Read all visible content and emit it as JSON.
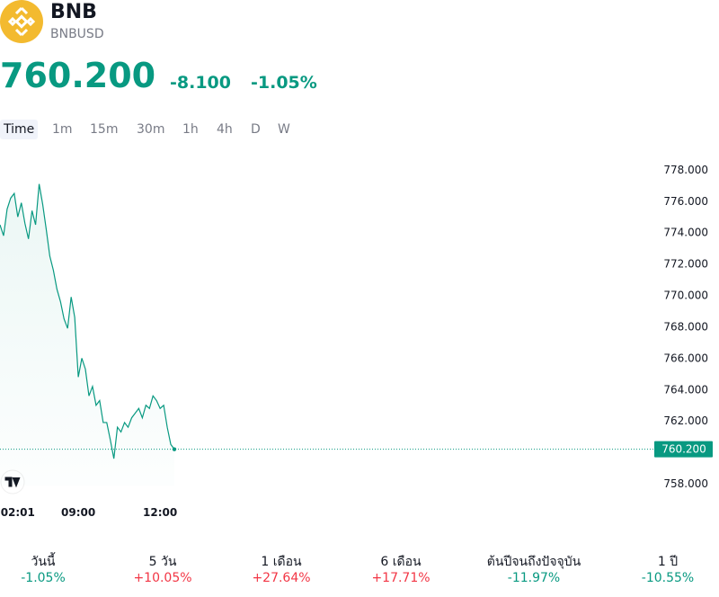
{
  "header": {
    "symbol": "BNB",
    "ticker": "BNBUSD",
    "price": "760.200",
    "change": "-8.100",
    "change_percent": "-1.05%"
  },
  "intervals": [
    "Time",
    "1m",
    "15m",
    "30m",
    "1h",
    "4h",
    "D",
    "W"
  ],
  "chart_data": {
    "type": "line",
    "color": "#089981",
    "categories": [
      null,
      null,
      null,
      null,
      null,
      "02:01",
      null,
      null,
      null,
      null,
      null,
      null,
      null,
      null,
      null,
      null,
      null,
      null,
      null,
      null,
      null,
      null,
      "09:00",
      null,
      null,
      null,
      null,
      null,
      null,
      null,
      null,
      null,
      null,
      null,
      null,
      null,
      null,
      null,
      null,
      null,
      null,
      null,
      null,
      null,
      null,
      "12:00",
      null,
      null,
      null,
      null
    ],
    "values": [
      774.5,
      773.8,
      775.5,
      776.2,
      776.5,
      775.0,
      775.9,
      774.6,
      773.6,
      775.4,
      774.5,
      777.1,
      775.8,
      774.2,
      772.5,
      771.6,
      770.4,
      769.6,
      768.5,
      767.9,
      769.9,
      768.6,
      764.8,
      766.0,
      765.3,
      763.6,
      764.2,
      763.0,
      763.3,
      761.9,
      761.9,
      760.8,
      759.6,
      761.6,
      761.3,
      761.9,
      761.6,
      762.2,
      762.5,
      762.8,
      762.2,
      763.0,
      762.8,
      763.6,
      763.3,
      762.8,
      763.0,
      761.6,
      760.5,
      760.2
    ],
    "ylim": [
      757,
      780
    ],
    "yticks": [
      {
        "value": 758,
        "label": "758.000"
      },
      {
        "value": 760,
        "label": "760.000"
      },
      {
        "value": 762,
        "label": "762.000"
      },
      {
        "value": 764,
        "label": "764.000"
      },
      {
        "value": 766,
        "label": "766.000"
      },
      {
        "value": 768,
        "label": "768.000"
      },
      {
        "value": 770,
        "label": "770.000"
      },
      {
        "value": 772,
        "label": "772.000"
      },
      {
        "value": 774,
        "label": "774.000"
      },
      {
        "value": 776,
        "label": "776.000"
      },
      {
        "value": 778,
        "label": "778.000"
      }
    ],
    "last_price": {
      "value": 760.2,
      "label": "760.200"
    }
  },
  "performance": [
    {
      "label": "วันนี้",
      "value": "-1.05%",
      "color": "#089981"
    },
    {
      "label": "5 วัน",
      "value": "+10.05%",
      "color": "#f23645"
    },
    {
      "label": "1 เดือน",
      "value": "+27.64%",
      "color": "#f23645"
    },
    {
      "label": "6 เดือน",
      "value": "+17.71%",
      "color": "#f23645"
    },
    {
      "label": "ต้นปีจนถึงปัจจุบัน",
      "value": "-11.97%",
      "color": "#089981"
    },
    {
      "label": "1 ปี",
      "value": "-10.55%",
      "color": "#089981"
    }
  ]
}
